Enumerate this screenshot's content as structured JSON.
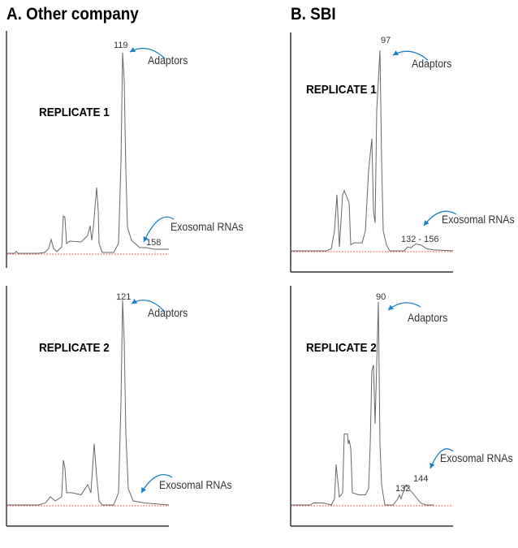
{
  "colors": {
    "trace": "#666666",
    "axis": "#333333",
    "baseline": "#e03030",
    "arrow": "#1a7fc4"
  },
  "chart_data": [
    {
      "type": "line",
      "panel_title": "A. Other company",
      "replicate": "REPLICATE 1",
      "peak_label": "119",
      "adaptors_label": "Adaptors",
      "exosomal_label": "Exosomal RNAs",
      "exosomal_peak_label": "158",
      "x_axis_line": false,
      "trace": [
        [
          0,
          0
        ],
        [
          5,
          0
        ],
        [
          6,
          1
        ],
        [
          7,
          0
        ],
        [
          19.5,
          0
        ],
        [
          23.5,
          0.4
        ],
        [
          26,
          2.4
        ],
        [
          27.5,
          6.8
        ],
        [
          29,
          2.4
        ],
        [
          31,
          0.8
        ],
        [
          34,
          3.2
        ],
        [
          35,
          18.4
        ],
        [
          36,
          17.6
        ],
        [
          37,
          4.8
        ],
        [
          39,
          6
        ],
        [
          46,
          5.6
        ],
        [
          50,
          8.8
        ],
        [
          51.5,
          13.6
        ],
        [
          52.5,
          6.4
        ],
        [
          53.5,
          12.8
        ],
        [
          55.5,
          32.4
        ],
        [
          56.5,
          20.8
        ],
        [
          57,
          4.8
        ],
        [
          59,
          0.4
        ],
        [
          66,
          0.4
        ],
        [
          69,
          4.8
        ],
        [
          70.5,
          44.8
        ],
        [
          71.5,
          98.8
        ],
        [
          72.5,
          84.8
        ],
        [
          73.5,
          40.8
        ],
        [
          74.5,
          12.8
        ],
        [
          77,
          6.4
        ],
        [
          82,
          2.8
        ],
        [
          86,
          2.8
        ],
        [
          91,
          2
        ],
        [
          100,
          2
        ]
      ]
    },
    {
      "type": "line",
      "panel_title": "",
      "replicate": "REPLICATE 2",
      "peak_label": "121",
      "adaptors_label": "Adaptors",
      "exosomal_label": "Exosomal RNAs",
      "exosomal_peak_label": "",
      "x_axis_line": true,
      "trace": [
        [
          0,
          0
        ],
        [
          20,
          0
        ],
        [
          24,
          1
        ],
        [
          27,
          4
        ],
        [
          30,
          2
        ],
        [
          34,
          4
        ],
        [
          35,
          22
        ],
        [
          36,
          18
        ],
        [
          37,
          6
        ],
        [
          40,
          6
        ],
        [
          46,
          5
        ],
        [
          50,
          10
        ],
        [
          52,
          6
        ],
        [
          54,
          30
        ],
        [
          55.5,
          14
        ],
        [
          57,
          2
        ],
        [
          59,
          0
        ],
        [
          66,
          0
        ],
        [
          69,
          6
        ],
        [
          70.5,
          50
        ],
        [
          71.5,
          100
        ],
        [
          72.5,
          80
        ],
        [
          73.5,
          35
        ],
        [
          75,
          8
        ],
        [
          78,
          2
        ],
        [
          85,
          1
        ],
        [
          100,
          0
        ]
      ]
    },
    {
      "type": "line",
      "panel_title": "B. SBI",
      "replicate": "REPLICATE 1",
      "peak_label": "97",
      "adaptors_label": "Adaptors",
      "exosomal_label": "Exosomal RNAs",
      "exosomal_peak_label": "132 - 156",
      "x_axis_line": true,
      "trace": [
        [
          0,
          0
        ],
        [
          22,
          0
        ],
        [
          25,
          1
        ],
        [
          27,
          10
        ],
        [
          28.5,
          28
        ],
        [
          30,
          2
        ],
        [
          32,
          28
        ],
        [
          33,
          30
        ],
        [
          34,
          28
        ],
        [
          36,
          24
        ],
        [
          37,
          3
        ],
        [
          39,
          4
        ],
        [
          44,
          4
        ],
        [
          46,
          10
        ],
        [
          48,
          40
        ],
        [
          50,
          56
        ],
        [
          51,
          20
        ],
        [
          52,
          14
        ],
        [
          53,
          70
        ],
        [
          55,
          100
        ],
        [
          56,
          45
        ],
        [
          57,
          10
        ],
        [
          59,
          3
        ],
        [
          61,
          0
        ],
        [
          70,
          0
        ],
        [
          72,
          2
        ],
        [
          74,
          1.5
        ],
        [
          77,
          3.5
        ],
        [
          80,
          3
        ],
        [
          84,
          1
        ],
        [
          88,
          0.5
        ],
        [
          100,
          0
        ]
      ]
    },
    {
      "type": "line",
      "panel_title": "",
      "replicate": "REPLICATE 2",
      "peak_label": "90",
      "adaptors_label": "Adaptors",
      "exosomal_label": "Exosomal RNAs",
      "exosomal_peak_label": "132",
      "exosomal_peak_label_2": "144",
      "x_axis_line": true,
      "trace": [
        [
          0,
          0
        ],
        [
          12,
          0
        ],
        [
          14,
          1
        ],
        [
          20,
          1
        ],
        [
          25,
          0
        ],
        [
          27,
          3
        ],
        [
          28,
          20
        ],
        [
          29,
          12
        ],
        [
          30,
          4
        ],
        [
          32,
          6
        ],
        [
          33,
          35
        ],
        [
          35,
          35
        ],
        [
          35.5,
          30
        ],
        [
          36,
          32
        ],
        [
          37,
          28
        ],
        [
          38,
          6
        ],
        [
          42,
          5
        ],
        [
          46,
          5
        ],
        [
          48,
          8
        ],
        [
          49,
          30
        ],
        [
          50,
          66
        ],
        [
          51,
          69
        ],
        [
          52,
          40
        ],
        [
          54,
          100
        ],
        [
          55,
          30
        ],
        [
          56,
          10
        ],
        [
          58,
          0
        ],
        [
          63,
          0
        ],
        [
          66,
          3
        ],
        [
          67,
          5
        ],
        [
          68,
          3
        ],
        [
          70,
          8
        ],
        [
          71,
          10
        ],
        [
          73,
          8
        ],
        [
          77,
          4
        ],
        [
          80,
          1
        ],
        [
          83,
          0
        ],
        [
          88,
          0
        ]
      ]
    }
  ]
}
